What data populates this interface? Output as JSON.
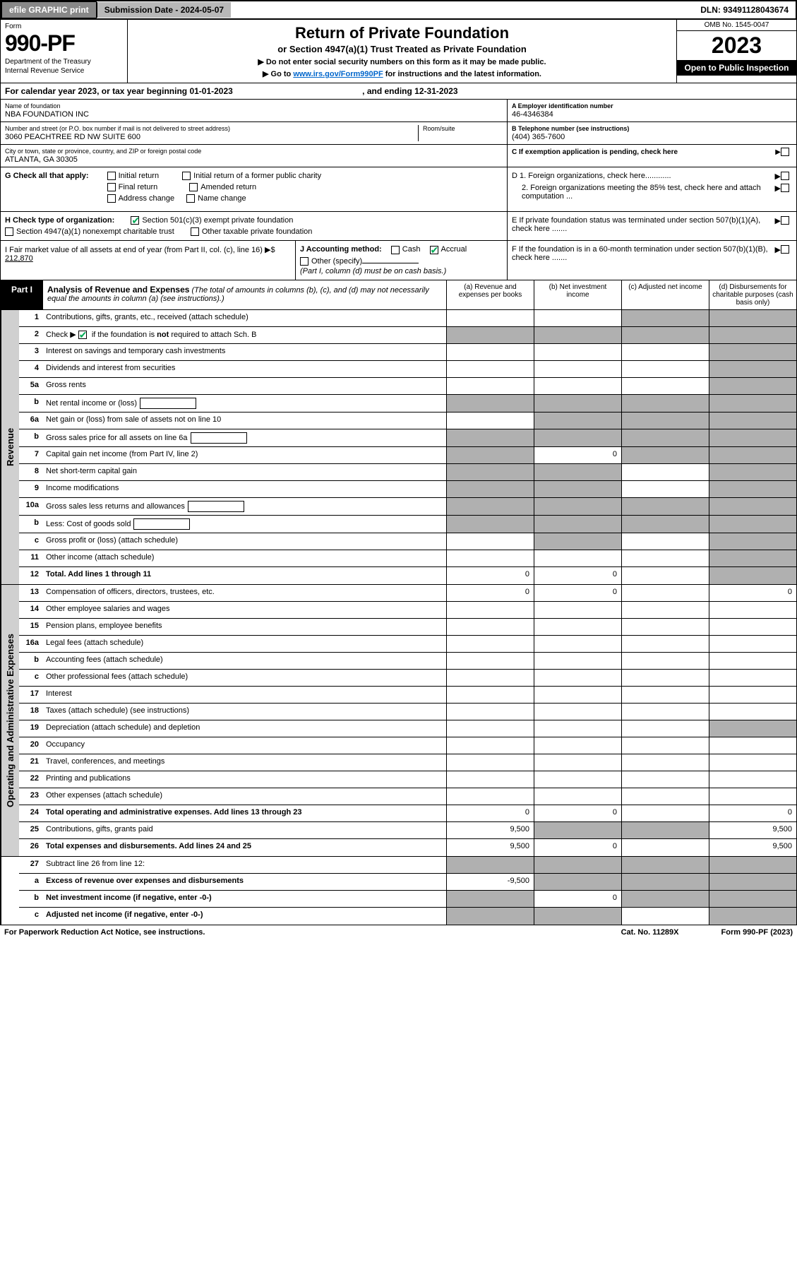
{
  "topbar": {
    "efile": "efile GRAPHIC print",
    "subdate_label": "Submission Date - 2024-05-07",
    "dln": "DLN: 93491128043674"
  },
  "header": {
    "form_label": "Form",
    "form_num": "990-PF",
    "dept": "Department of the Treasury",
    "irs": "Internal Revenue Service",
    "title": "Return of Private Foundation",
    "subtitle": "or Section 4947(a)(1) Trust Treated as Private Foundation",
    "note1": "▶ Do not enter social security numbers on this form as it may be made public.",
    "note2": "▶ Go to ",
    "link": "www.irs.gov/Form990PF",
    "note3": " for instructions and the latest information.",
    "omb": "OMB No. 1545-0047",
    "year": "2023",
    "open": "Open to Public Inspection"
  },
  "calyear": {
    "a": "For calendar year 2023, or tax year beginning 01-01-2023",
    "b": ", and ending 12-31-2023"
  },
  "info": {
    "name_lbl": "Name of foundation",
    "name": "NBA FOUNDATION INC",
    "addr_lbl": "Number and street (or P.O. box number if mail is not delivered to street address)",
    "addr": "3060 PEACHTREE RD NW SUITE 600",
    "room_lbl": "Room/suite",
    "city_lbl": "City or town, state or province, country, and ZIP or foreign postal code",
    "city": "ATLANTA, GA  30305",
    "a_lbl": "A Employer identification number",
    "a_val": "46-4346384",
    "b_lbl": "B Telephone number (see instructions)",
    "b_val": "(404) 365-7600",
    "c_lbl": "C If exemption application is pending, check here"
  },
  "g": {
    "label": "G Check all that apply:",
    "opts": [
      "Initial return",
      "Final return",
      "Address change",
      "Initial return of a former public charity",
      "Amended return",
      "Name change"
    ]
  },
  "h": {
    "label": "H Check type of organization:",
    "opt1": "Section 501(c)(3) exempt private foundation",
    "opt2": "Section 4947(a)(1) nonexempt charitable trust",
    "opt3": "Other taxable private foundation"
  },
  "i": {
    "label": "I Fair market value of all assets at end of year (from Part II, col. (c), line 16) ▶$",
    "val": "212,870"
  },
  "j": {
    "label": "J Accounting method:",
    "cash": "Cash",
    "accrual": "Accrual",
    "other": "Other (specify)",
    "note": "(Part I, column (d) must be on cash basis.)"
  },
  "d": {
    "d1": "D 1. Foreign organizations, check here............",
    "d2": "2. Foreign organizations meeting the 85% test, check here and attach computation ..."
  },
  "e": {
    "txt": "E  If private foundation status was terminated under section 507(b)(1)(A), check here ......."
  },
  "f": {
    "txt": "F  If the foundation is in a 60-month termination under section 507(b)(1)(B), check here ......."
  },
  "part1": {
    "label": "Part I",
    "title": "Analysis of Revenue and Expenses",
    "note": "(The total of amounts in columns (b), (c), and (d) may not necessarily equal the amounts in column (a) (see instructions).)",
    "cols": [
      "(a)  Revenue and expenses per books",
      "(b)  Net investment income",
      "(c)  Adjusted net income",
      "(d)  Disbursements for charitable purposes (cash basis only)"
    ]
  },
  "rev_label": "Revenue",
  "exp_label": "Operating and Administrative Expenses",
  "rows_rev": [
    {
      "n": "1",
      "d": "Contributions, gifts, grants, etc., received (attach schedule)",
      "v": [
        "",
        "",
        "",
        ""
      ],
      "sh": [
        0,
        0,
        1,
        1
      ]
    },
    {
      "n": "2",
      "d": "Check ▶ ☑ if the foundation is not required to attach Sch. B",
      "v": [
        "",
        "",
        "",
        ""
      ],
      "sh": [
        1,
        1,
        1,
        1
      ],
      "raw": true
    },
    {
      "n": "3",
      "d": "Interest on savings and temporary cash investments",
      "v": [
        "",
        "",
        "",
        ""
      ],
      "sh": [
        0,
        0,
        0,
        1
      ]
    },
    {
      "n": "4",
      "d": "Dividends and interest from securities",
      "v": [
        "",
        "",
        "",
        ""
      ],
      "sh": [
        0,
        0,
        0,
        1
      ]
    },
    {
      "n": "5a",
      "d": "Gross rents",
      "v": [
        "",
        "",
        "",
        ""
      ],
      "sh": [
        0,
        0,
        0,
        1
      ]
    },
    {
      "n": "b",
      "d": "Net rental income or (loss)",
      "v": [
        "",
        "",
        "",
        ""
      ],
      "sh": [
        1,
        1,
        1,
        1
      ],
      "inset": true
    },
    {
      "n": "6a",
      "d": "Net gain or (loss) from sale of assets not on line 10",
      "v": [
        "",
        "",
        "",
        ""
      ],
      "sh": [
        0,
        1,
        1,
        1
      ]
    },
    {
      "n": "b",
      "d": "Gross sales price for all assets on line 6a",
      "v": [
        "",
        "",
        "",
        ""
      ],
      "sh": [
        1,
        1,
        1,
        1
      ],
      "inset": true
    },
    {
      "n": "7",
      "d": "Capital gain net income (from Part IV, line 2)",
      "v": [
        "",
        "0",
        "",
        ""
      ],
      "sh": [
        1,
        0,
        1,
        1
      ]
    },
    {
      "n": "8",
      "d": "Net short-term capital gain",
      "v": [
        "",
        "",
        "",
        ""
      ],
      "sh": [
        1,
        1,
        0,
        1
      ]
    },
    {
      "n": "9",
      "d": "Income modifications",
      "v": [
        "",
        "",
        "",
        ""
      ],
      "sh": [
        1,
        1,
        0,
        1
      ]
    },
    {
      "n": "10a",
      "d": "Gross sales less returns and allowances",
      "v": [
        "",
        "",
        "",
        ""
      ],
      "sh": [
        1,
        1,
        1,
        1
      ],
      "inset": true
    },
    {
      "n": "b",
      "d": "Less: Cost of goods sold",
      "v": [
        "",
        "",
        "",
        ""
      ],
      "sh": [
        1,
        1,
        1,
        1
      ],
      "inset": true
    },
    {
      "n": "c",
      "d": "Gross profit or (loss) (attach schedule)",
      "v": [
        "",
        "",
        "",
        ""
      ],
      "sh": [
        0,
        1,
        0,
        1
      ]
    },
    {
      "n": "11",
      "d": "Other income (attach schedule)",
      "v": [
        "",
        "",
        "",
        ""
      ],
      "sh": [
        0,
        0,
        0,
        1
      ]
    },
    {
      "n": "12",
      "d": "Total. Add lines 1 through 11",
      "v": [
        "0",
        "0",
        "",
        ""
      ],
      "sh": [
        0,
        0,
        0,
        1
      ],
      "b": true
    }
  ],
  "rows_exp": [
    {
      "n": "13",
      "d": "Compensation of officers, directors, trustees, etc.",
      "v": [
        "0",
        "0",
        "",
        "0"
      ],
      "sh": [
        0,
        0,
        0,
        0
      ]
    },
    {
      "n": "14",
      "d": "Other employee salaries and wages",
      "v": [
        "",
        "",
        "",
        ""
      ],
      "sh": [
        0,
        0,
        0,
        0
      ]
    },
    {
      "n": "15",
      "d": "Pension plans, employee benefits",
      "v": [
        "",
        "",
        "",
        ""
      ],
      "sh": [
        0,
        0,
        0,
        0
      ]
    },
    {
      "n": "16a",
      "d": "Legal fees (attach schedule)",
      "v": [
        "",
        "",
        "",
        ""
      ],
      "sh": [
        0,
        0,
        0,
        0
      ]
    },
    {
      "n": "b",
      "d": "Accounting fees (attach schedule)",
      "v": [
        "",
        "",
        "",
        ""
      ],
      "sh": [
        0,
        0,
        0,
        0
      ]
    },
    {
      "n": "c",
      "d": "Other professional fees (attach schedule)",
      "v": [
        "",
        "",
        "",
        ""
      ],
      "sh": [
        0,
        0,
        0,
        0
      ]
    },
    {
      "n": "17",
      "d": "Interest",
      "v": [
        "",
        "",
        "",
        ""
      ],
      "sh": [
        0,
        0,
        0,
        0
      ]
    },
    {
      "n": "18",
      "d": "Taxes (attach schedule) (see instructions)",
      "v": [
        "",
        "",
        "",
        ""
      ],
      "sh": [
        0,
        0,
        0,
        0
      ]
    },
    {
      "n": "19",
      "d": "Depreciation (attach schedule) and depletion",
      "v": [
        "",
        "",
        "",
        ""
      ],
      "sh": [
        0,
        0,
        0,
        1
      ]
    },
    {
      "n": "20",
      "d": "Occupancy",
      "v": [
        "",
        "",
        "",
        ""
      ],
      "sh": [
        0,
        0,
        0,
        0
      ]
    },
    {
      "n": "21",
      "d": "Travel, conferences, and meetings",
      "v": [
        "",
        "",
        "",
        ""
      ],
      "sh": [
        0,
        0,
        0,
        0
      ]
    },
    {
      "n": "22",
      "d": "Printing and publications",
      "v": [
        "",
        "",
        "",
        ""
      ],
      "sh": [
        0,
        0,
        0,
        0
      ]
    },
    {
      "n": "23",
      "d": "Other expenses (attach schedule)",
      "v": [
        "",
        "",
        "",
        ""
      ],
      "sh": [
        0,
        0,
        0,
        0
      ]
    },
    {
      "n": "24",
      "d": "Total operating and administrative expenses. Add lines 13 through 23",
      "v": [
        "0",
        "0",
        "",
        "0"
      ],
      "sh": [
        0,
        0,
        0,
        0
      ],
      "b": true
    },
    {
      "n": "25",
      "d": "Contributions, gifts, grants paid",
      "v": [
        "9,500",
        "",
        "",
        "9,500"
      ],
      "sh": [
        0,
        1,
        1,
        0
      ]
    },
    {
      "n": "26",
      "d": "Total expenses and disbursements. Add lines 24 and 25",
      "v": [
        "9,500",
        "0",
        "",
        "9,500"
      ],
      "sh": [
        0,
        0,
        0,
        0
      ],
      "b": true
    }
  ],
  "rows_net": [
    {
      "n": "27",
      "d": "Subtract line 26 from line 12:",
      "v": [
        "",
        "",
        "",
        ""
      ],
      "sh": [
        1,
        1,
        1,
        1
      ]
    },
    {
      "n": "a",
      "d": "Excess of revenue over expenses and disbursements",
      "v": [
        "-9,500",
        "",
        "",
        ""
      ],
      "sh": [
        0,
        1,
        1,
        1
      ],
      "b": true
    },
    {
      "n": "b",
      "d": "Net investment income (if negative, enter -0-)",
      "v": [
        "",
        "0",
        "",
        ""
      ],
      "sh": [
        1,
        0,
        1,
        1
      ],
      "b": true
    },
    {
      "n": "c",
      "d": "Adjusted net income (if negative, enter -0-)",
      "v": [
        "",
        "",
        "",
        ""
      ],
      "sh": [
        1,
        1,
        0,
        1
      ],
      "b": true
    }
  ],
  "footer": {
    "l": "For Paperwork Reduction Act Notice, see instructions.",
    "m": "Cat. No. 11289X",
    "r": "Form 990-PF (2023)"
  }
}
